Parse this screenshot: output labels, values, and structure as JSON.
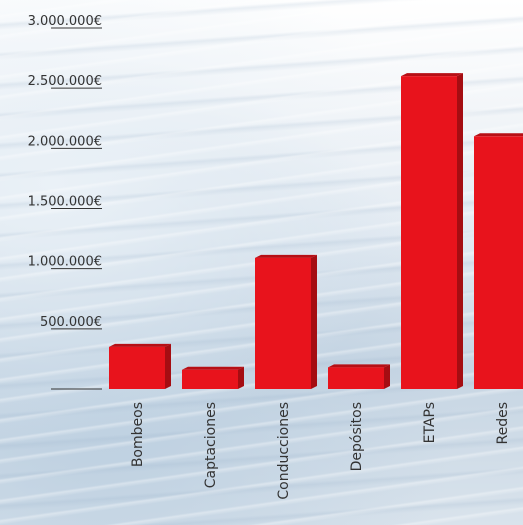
{
  "chart_data": {
    "type": "bar",
    "categories": [
      "Bombeos",
      "Captaciones",
      "Conducciones",
      "Depósitos",
      "ETAPs",
      "Redes"
    ],
    "values": [
      350000,
      160000,
      1090000,
      180000,
      2600000,
      2100000
    ],
    "y_ticks": [
      "3.000.000€",
      "2.500.000€",
      "2.000.000€",
      "1.500.000€",
      "1.000.000€",
      "500.000€"
    ],
    "y_tick_values": [
      3000000,
      2500000,
      2000000,
      1500000,
      1000000,
      500000
    ],
    "ylim": [
      0,
      3000000
    ],
    "grid": false,
    "bar_color": "#e8131c",
    "bar_side_color": "#a50d12",
    "bar_top_color": "#b70f15"
  }
}
